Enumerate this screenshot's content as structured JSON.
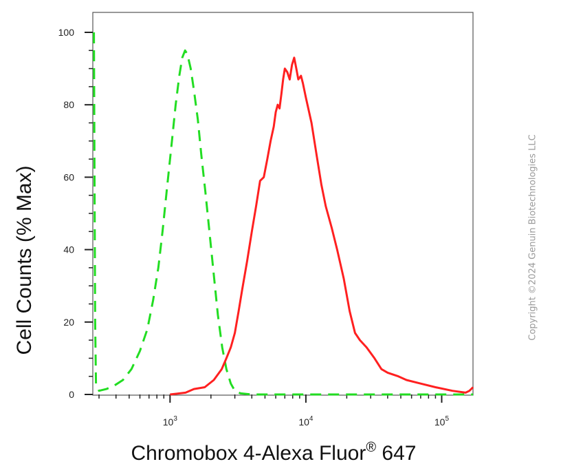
{
  "chart_data": {
    "type": "line",
    "title": "",
    "xlabel_main": "Chromobox 4-Alexa Fluor",
    "xlabel_sup": "®",
    "xlabel_tail": " 647",
    "ylabel": "Cell Counts (% Max)",
    "x_scale": "log",
    "xlim": [
      270,
      170000
    ],
    "ylim": [
      0,
      100
    ],
    "y_ticks": [
      0,
      20,
      40,
      60,
      80,
      100
    ],
    "x_major_ticks": [
      {
        "value": 1000,
        "base": "10",
        "exp": "3"
      },
      {
        "value": 10000,
        "base": "10",
        "exp": "4"
      },
      {
        "value": 100000,
        "base": "10",
        "exp": "5"
      }
    ],
    "grid": false,
    "legend": "none",
    "series": [
      {
        "color": "#22dd22",
        "style": "dashed",
        "points": [
          [
            275,
            100
          ],
          [
            278,
            60
          ],
          [
            281,
            20
          ],
          [
            285,
            3
          ],
          [
            300,
            1
          ],
          [
            340,
            1.5
          ],
          [
            390,
            2.5
          ],
          [
            450,
            4
          ],
          [
            520,
            7
          ],
          [
            600,
            12
          ],
          [
            680,
            18
          ],
          [
            750,
            26
          ],
          [
            820,
            35
          ],
          [
            880,
            45
          ],
          [
            950,
            57
          ],
          [
            1020,
            68
          ],
          [
            1100,
            80
          ],
          [
            1170,
            88
          ],
          [
            1230,
            93
          ],
          [
            1290,
            95
          ],
          [
            1340,
            94
          ],
          [
            1420,
            90
          ],
          [
            1500,
            84
          ],
          [
            1600,
            76
          ],
          [
            1700,
            66
          ],
          [
            1820,
            56
          ],
          [
            1950,
            45
          ],
          [
            2100,
            33
          ],
          [
            2250,
            22
          ],
          [
            2420,
            13
          ],
          [
            2600,
            7
          ],
          [
            2800,
            3
          ],
          [
            3000,
            1
          ],
          [
            3300,
            0.3
          ],
          [
            4000,
            0
          ],
          [
            10000,
            0
          ],
          [
            50000,
            0
          ],
          [
            100000,
            0
          ],
          [
            170000,
            0
          ]
        ]
      },
      {
        "color": "#ff2020",
        "style": "solid",
        "points": [
          [
            1000,
            0
          ],
          [
            1300,
            0.5
          ],
          [
            1500,
            1.5
          ],
          [
            1800,
            2
          ],
          [
            2100,
            4
          ],
          [
            2400,
            7
          ],
          [
            2600,
            10
          ],
          [
            2800,
            13
          ],
          [
            3000,
            17
          ],
          [
            3200,
            23
          ],
          [
            3400,
            29
          ],
          [
            3700,
            37
          ],
          [
            4000,
            45
          ],
          [
            4300,
            52
          ],
          [
            4600,
            59
          ],
          [
            4900,
            60
          ],
          [
            5200,
            65
          ],
          [
            5500,
            70
          ],
          [
            5800,
            74
          ],
          [
            6000,
            78
          ],
          [
            6200,
            80
          ],
          [
            6400,
            79
          ],
          [
            6600,
            83
          ],
          [
            6800,
            87
          ],
          [
            7000,
            90
          ],
          [
            7300,
            89
          ],
          [
            7600,
            87
          ],
          [
            7900,
            91
          ],
          [
            8200,
            93
          ],
          [
            8500,
            90
          ],
          [
            8800,
            87
          ],
          [
            9200,
            88
          ],
          [
            9500,
            86
          ],
          [
            10000,
            82
          ],
          [
            11000,
            75
          ],
          [
            12000,
            66
          ],
          [
            13000,
            58
          ],
          [
            14000,
            52
          ],
          [
            15500,
            46
          ],
          [
            17000,
            40
          ],
          [
            19000,
            32
          ],
          [
            21000,
            23
          ],
          [
            23000,
            17
          ],
          [
            25000,
            15
          ],
          [
            28000,
            13
          ],
          [
            32000,
            10
          ],
          [
            36000,
            7
          ],
          [
            40000,
            6
          ],
          [
            48000,
            5
          ],
          [
            55000,
            4
          ],
          [
            70000,
            3
          ],
          [
            90000,
            2
          ],
          [
            120000,
            1
          ],
          [
            150000,
            0.5
          ],
          [
            160000,
            1
          ],
          [
            170000,
            2
          ]
        ]
      }
    ]
  },
  "copyright": "Copyright ©2024 Genuin Biotechnologies LLC"
}
